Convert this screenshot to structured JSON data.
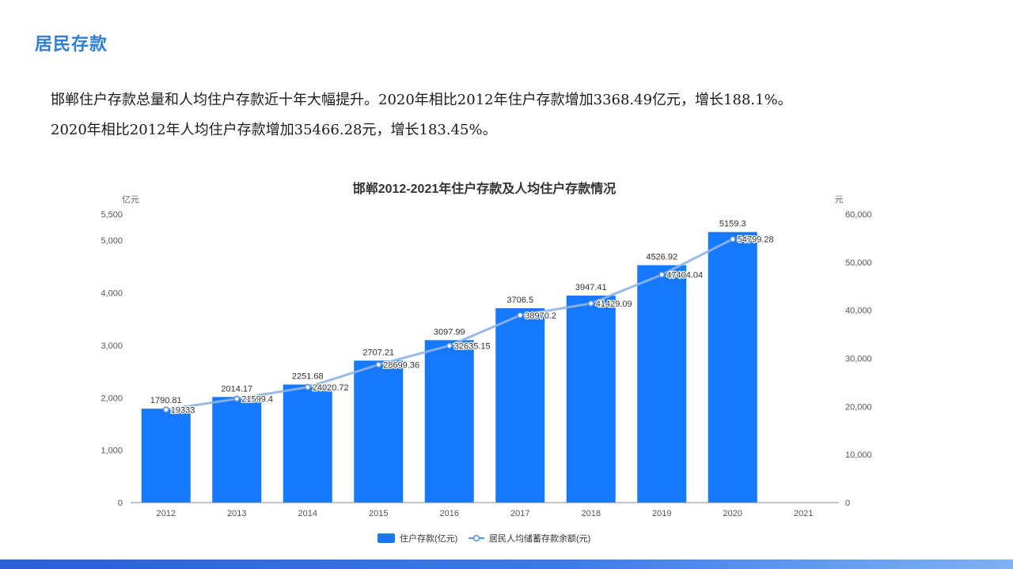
{
  "section_title": "居民存款",
  "paragraphs": [
    "邯郸住户存款总量和人均住户存款近十年大幅提升。2020年相比2012年住户存款增加3368.49亿元，增长188.1%。",
    "2020年相比2012年人均住户存款增加35466.28元，增长183.45%。"
  ],
  "chart_data": {
    "type": "bar",
    "title": "邯郸2012-2021年住户存款及人均住户存款情况",
    "categories": [
      "2012",
      "2013",
      "2014",
      "2015",
      "2016",
      "2017",
      "2018",
      "2019",
      "2020",
      "2021"
    ],
    "series": [
      {
        "name": "住户存款(亿元)",
        "type": "bar",
        "axis": "left",
        "color": "#1677ff",
        "values": [
          1790.81,
          2014.17,
          2251.68,
          2707.21,
          3097.99,
          3706.5,
          3947.41,
          4526.92,
          5159.3,
          null
        ],
        "labels": [
          "1790.81",
          "2014.17",
          "2251.68",
          "2707.21",
          "3097.99",
          "3706.5",
          "3947.41",
          "4526.92",
          "5159.3",
          ""
        ]
      },
      {
        "name": "居民人均储蓄存款余额(元)",
        "type": "line",
        "axis": "right",
        "color": "#8fb3e3",
        "values": [
          19333,
          21599.4,
          24020.72,
          28699.36,
          32635.15,
          38970.2,
          41429.09,
          47404.04,
          54799.28,
          null
        ],
        "labels": [
          "19333",
          "21599.4",
          "24020.72",
          "28699.36",
          "32635.15",
          "38970.2",
          "41429.09",
          "47404.04",
          "54799.28",
          ""
        ]
      }
    ],
    "y_left": {
      "unit": "亿元",
      "ylim": [
        0,
        5500
      ],
      "ticks": [
        0,
        1000,
        2000,
        3000,
        4000,
        5000,
        5500
      ],
      "tick_labels": [
        "0",
        "1,000",
        "2,000",
        "3,000",
        "4,000",
        "5,000",
        "5,500"
      ]
    },
    "y_right": {
      "unit": "元",
      "ylim": [
        0,
        60000
      ],
      "ticks": [
        0,
        10000,
        20000,
        30000,
        40000,
        50000,
        60000
      ],
      "tick_labels": [
        "0",
        "10,000",
        "20,000",
        "30,000",
        "40,000",
        "50,000",
        "60,000"
      ]
    },
    "grid": false,
    "legend_position": "bottom"
  }
}
